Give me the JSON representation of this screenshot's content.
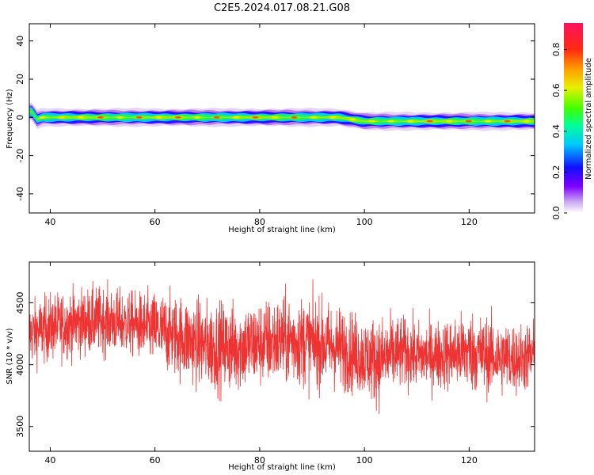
{
  "figure": {
    "title": "C2E5.2024.017.08.21.G08"
  },
  "chart_data": [
    {
      "type": "heatmap",
      "title": "",
      "xlabel": "Height of straight line (km)",
      "ylabel": "Frequency (Hz)",
      "xlim": [
        36,
        132.5
      ],
      "ylim": [
        -50,
        49
      ],
      "xticks": [
        40,
        60,
        80,
        100,
        120
      ],
      "xtick_labels": [
        "40",
        "60",
        "80",
        "100",
        "120"
      ],
      "yticks": [
        40,
        20,
        0,
        -20,
        -40
      ],
      "ytick_labels": [
        "40",
        "20",
        "0",
        "-20",
        "-40"
      ],
      "band": {
        "center_frequency_hz": 0,
        "description_points": [
          {
            "x": 36.5,
            "f": 3
          },
          {
            "x": 37.5,
            "f": -1
          },
          {
            "x": 38.5,
            "f": 0
          },
          {
            "x": 95,
            "f": 0
          },
          {
            "x": 100,
            "f": -2
          },
          {
            "x": 132,
            "f": -2
          }
        ]
      },
      "colorbar": {
        "label": "Normalized spectral amplitude",
        "range": [
          0,
          0.93
        ],
        "ticks": [
          0.0,
          0.2,
          0.4,
          0.6,
          0.8
        ],
        "tick_labels": [
          "0.0",
          "0.2",
          "0.4",
          "0.6",
          "0.8"
        ]
      },
      "grid": false
    },
    {
      "type": "line",
      "title": "",
      "xlabel": "Height of straight line (km)",
      "ylabel": "SNR (10 * v/v)",
      "xlim": [
        36,
        132.5
      ],
      "ylim": [
        3300,
        4830
      ],
      "xticks": [
        40,
        60,
        80,
        100,
        120
      ],
      "xtick_labels": [
        "40",
        "60",
        "80",
        "100",
        "120"
      ],
      "yticks": [
        4500,
        4000,
        3500
      ],
      "ytick_labels": [
        "4500",
        "4000",
        "3500"
      ],
      "color": "#ee3333",
      "grid": false,
      "series": [
        {
          "x": [
            36,
            40,
            45,
            50,
            55,
            60,
            65,
            70,
            75,
            80,
            85,
            90,
            95,
            100,
            103,
            105,
            108,
            110,
            115,
            120,
            125,
            130,
            132
          ],
          "values": [
            4250,
            4300,
            4340,
            4360,
            4330,
            4290,
            4220,
            4150,
            4140,
            4170,
            4200,
            4180,
            4140,
            4060,
            4030,
            4080,
            4100,
            4070,
            4080,
            4110,
            4060,
            4050,
            4070
          ],
          "spread": [
            230,
            240,
            240,
            240,
            230,
            260,
            300,
            320,
            320,
            310,
            320,
            320,
            300,
            280,
            320,
            280,
            250,
            240,
            250,
            290,
            270,
            250,
            250
          ]
        }
      ]
    }
  ]
}
